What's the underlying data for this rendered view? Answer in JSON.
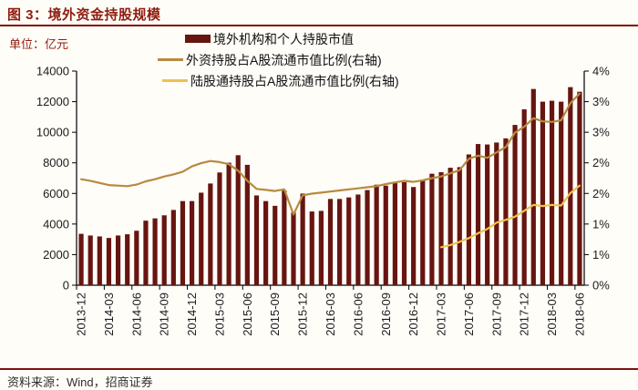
{
  "header": {
    "title": "图 3：境外资金持股规模"
  },
  "chart": {
    "unit_label": "单位：亿元",
    "colors": {
      "accent_red": "#8e1d10",
      "divider_red": "#7d1110",
      "axis": "#000000",
      "tick_text": "#1c1c1c",
      "background": "#fffdf8"
    }
  },
  "chart_data": {
    "type": "bar+line",
    "title": "境外资金持股规模",
    "unit": "亿元",
    "legend_position": "top",
    "grid": false,
    "categories": [
      "2013-12",
      "2014-01",
      "2014-02",
      "2014-03",
      "2014-04",
      "2014-05",
      "2014-06",
      "2014-07",
      "2014-08",
      "2014-09",
      "2014-10",
      "2014-11",
      "2014-12",
      "2015-01",
      "2015-02",
      "2015-03",
      "2015-04",
      "2015-05",
      "2015-06",
      "2015-07",
      "2015-08",
      "2015-09",
      "2015-10",
      "2015-11",
      "2015-12",
      "2016-01",
      "2016-02",
      "2016-03",
      "2016-04",
      "2016-05",
      "2016-06",
      "2016-07",
      "2016-08",
      "2016-09",
      "2016-10",
      "2016-11",
      "2016-12",
      "2017-01",
      "2017-02",
      "2017-03",
      "2017-04",
      "2017-05",
      "2017-06",
      "2017-07",
      "2017-08",
      "2017-09",
      "2017-10",
      "2017-11",
      "2017-12",
      "2018-01",
      "2018-02",
      "2018-03",
      "2018-04",
      "2018-05",
      "2018-06"
    ],
    "series": [
      {
        "name": "境外机构和个人持股市值",
        "type": "bar",
        "axis": "left",
        "color": "#671511",
        "values": [
          3360,
          3250,
          3190,
          3090,
          3250,
          3330,
          3560,
          4220,
          4370,
          4570,
          4920,
          5500,
          5500,
          6050,
          6650,
          7370,
          8010,
          8500,
          7870,
          5870,
          5500,
          5190,
          6180,
          4760,
          5990,
          4820,
          4860,
          5640,
          5640,
          5740,
          5930,
          6220,
          6570,
          6510,
          6670,
          6740,
          6420,
          6900,
          7290,
          7390,
          7680,
          7720,
          8550,
          9230,
          9200,
          9330,
          9600,
          10480,
          11500,
          12830,
          12000,
          12060,
          12000,
          12950,
          12650
        ]
      },
      {
        "name": "外资持股占A股流通市值比例(右轴)",
        "type": "line",
        "axis": "right",
        "color": "#b78a3e",
        "values": [
          1.98,
          1.95,
          1.91,
          1.87,
          1.86,
          1.85,
          1.88,
          1.94,
          1.98,
          2.03,
          2.07,
          2.12,
          2.22,
          2.28,
          2.32,
          2.3,
          2.26,
          2.14,
          1.95,
          1.8,
          1.78,
          1.76,
          1.79,
          1.32,
          1.68,
          1.71,
          1.73,
          1.75,
          1.77,
          1.79,
          1.81,
          1.83,
          1.85,
          1.89,
          1.92,
          1.95,
          1.93,
          1.96,
          2.0,
          2.03,
          2.09,
          2.15,
          2.36,
          2.42,
          2.38,
          2.48,
          2.58,
          2.85,
          2.96,
          3.12,
          3.06,
          3.05,
          3.08,
          3.4,
          3.58
        ]
      },
      {
        "name": "陆股通持股占A股流通市值比例(右轴)",
        "type": "line",
        "axis": "right",
        "color": "#efc14f",
        "values": [
          null,
          null,
          null,
          null,
          null,
          null,
          null,
          null,
          null,
          null,
          null,
          null,
          null,
          null,
          null,
          null,
          null,
          null,
          null,
          null,
          null,
          null,
          null,
          null,
          null,
          null,
          null,
          null,
          null,
          null,
          null,
          null,
          null,
          null,
          null,
          null,
          null,
          null,
          null,
          0.71,
          0.75,
          0.81,
          0.88,
          0.97,
          1.05,
          1.17,
          1.22,
          1.28,
          1.39,
          1.5,
          1.48,
          1.5,
          1.49,
          1.72,
          1.86
        ]
      }
    ],
    "left_axis": {
      "min": 0,
      "max": 14000,
      "tick_labels": [
        "14000",
        "12000",
        "10000",
        "8000",
        "6000",
        "4000",
        "2000",
        "0"
      ]
    },
    "right_axis": {
      "min": 0,
      "max": 4,
      "tick_labels": [
        "4%",
        "3%",
        "3%",
        "2%",
        "2%",
        "1%",
        "1%",
        "0%"
      ]
    },
    "x_tick_labels": [
      "2013-12",
      "2014-03",
      "2014-06",
      "2014-09",
      "2014-12",
      "2015-03",
      "2015-06",
      "2015-09",
      "2015-12",
      "2016-03",
      "2016-06",
      "2016-09",
      "2016-12",
      "2017-03",
      "2017-06",
      "2017-09",
      "2017-12",
      "2018-03",
      "2018-06"
    ]
  },
  "footer": {
    "source": "资料来源：Wind，招商证券"
  }
}
